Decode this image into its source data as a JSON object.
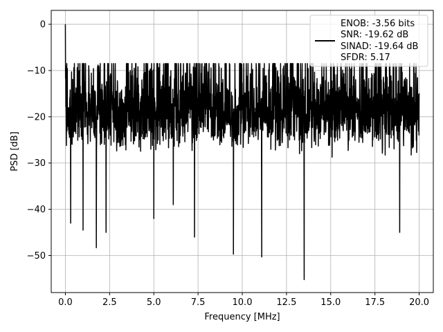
{
  "chart_data": {
    "type": "line",
    "title": "",
    "xlabel": "Frequency [MHz]",
    "ylabel": "PSD [dB]",
    "xlim": [
      -0.8,
      20.8
    ],
    "ylim": [
      -58,
      3
    ],
    "x_ticks": [
      0.0,
      2.5,
      5.0,
      7.5,
      10.0,
      12.5,
      15.0,
      17.5,
      20.0
    ],
    "x_tick_labels": [
      "0.0",
      "2.5",
      "5.0",
      "7.5",
      "10.0",
      "12.5",
      "15.0",
      "17.5",
      "20.0"
    ],
    "y_ticks": [
      0,
      -10,
      -20,
      -30,
      -40,
      -50
    ],
    "y_tick_labels": [
      "0",
      "−10",
      "−20",
      "−30",
      "−40",
      "−50"
    ],
    "grid": true,
    "legend_position": "top-right",
    "legend_entries": [
      "ENOB: -3.56 bits",
      "SNR: -19.62 dB",
      "SINAD: -19.64 dB",
      "SFDR: 5.17"
    ],
    "line_color": "#000000",
    "series": [
      {
        "x_range": [
          0,
          20
        ],
        "points": 2000,
        "noise_floor_db": -20,
        "noise_max_db": -8.5,
        "noise_min_db": -44,
        "peaks": [
          {
            "x": 0.0,
            "y": 0.0
          },
          {
            "x": 0.02,
            "y": -9
          },
          {
            "x": 0.05,
            "y": -21
          }
        ],
        "dips": [
          {
            "x": 0.3,
            "y": -43
          },
          {
            "x": 1.0,
            "y": -44.5
          },
          {
            "x": 1.75,
            "y": -48.3
          },
          {
            "x": 2.3,
            "y": -45
          },
          {
            "x": 5.0,
            "y": -42
          },
          {
            "x": 6.1,
            "y": -39
          },
          {
            "x": 7.3,
            "y": -46
          },
          {
            "x": 9.5,
            "y": -49.7
          },
          {
            "x": 11.1,
            "y": -50.3
          },
          {
            "x": 13.5,
            "y": -55.2
          },
          {
            "x": 18.9,
            "y": -45
          }
        ]
      }
    ]
  }
}
